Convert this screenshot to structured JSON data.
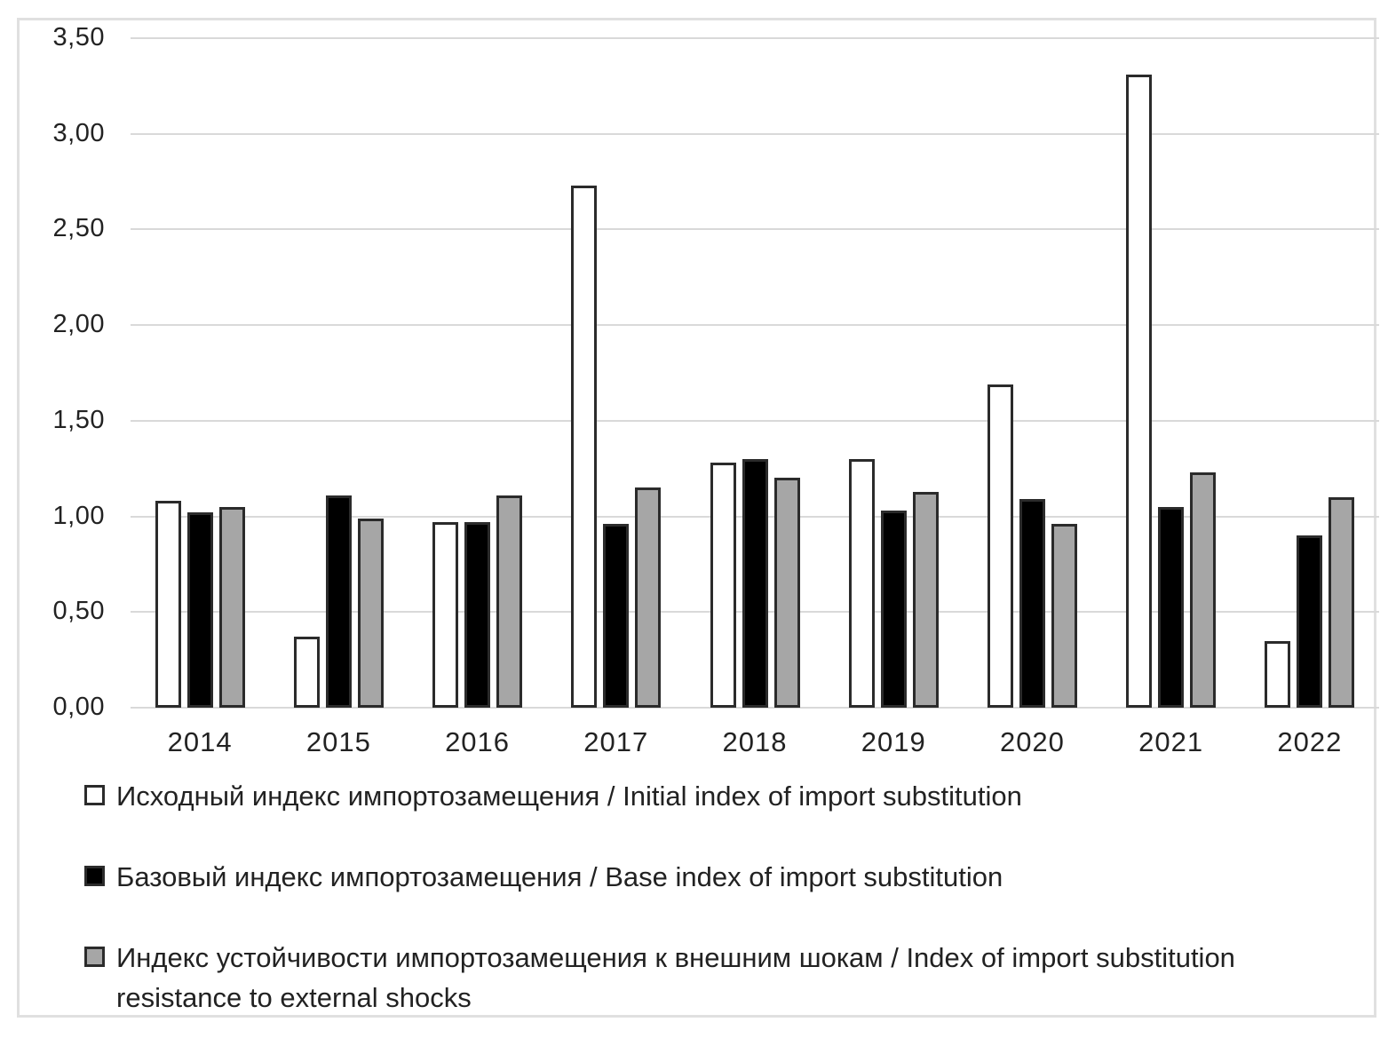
{
  "figure": {
    "frame_color": "#e0e0e0",
    "background": "#ffffff",
    "text_color": "#222222"
  },
  "chart_data": {
    "type": "bar",
    "title": "",
    "xlabel": "",
    "ylabel": "",
    "categories": [
      "2014",
      "2015",
      "2016",
      "2017",
      "2018",
      "2019",
      "2020",
      "2021",
      "2022"
    ],
    "series": [
      {
        "key": "initial",
        "name": "Исходный индекс импортозамещения / Initial index of import substitution",
        "fill": "#ffffff",
        "values": [
          1.08,
          0.37,
          0.97,
          2.73,
          1.28,
          1.3,
          1.69,
          3.31,
          0.35
        ]
      },
      {
        "key": "base",
        "name": "Базовый индекс импортозамещения / Base index of import substitution",
        "fill": "#000000",
        "values": [
          1.02,
          1.11,
          0.97,
          0.96,
          1.3,
          1.03,
          1.09,
          1.05,
          0.9
        ]
      },
      {
        "key": "resistance",
        "name": "Индекс устойчивости импортозамещения к внешним шокам / Index of import substitution resistance to external shocks",
        "fill": "#a6a6a6",
        "values": [
          1.05,
          0.99,
          1.11,
          1.15,
          1.2,
          1.13,
          0.96,
          1.23,
          1.1
        ]
      }
    ],
    "ylim": [
      0,
      3.5
    ],
    "ytick_step": 0.5,
    "ytick_labels": [
      "0,00",
      "0,50",
      "1,00",
      "1,50",
      "2,00",
      "2,50",
      "3,00",
      "3,50"
    ],
    "grid": true,
    "gridline_color": "#d9d9d9",
    "bar_border_color": "#2b2b2b",
    "legend_position": "bottom-left"
  }
}
